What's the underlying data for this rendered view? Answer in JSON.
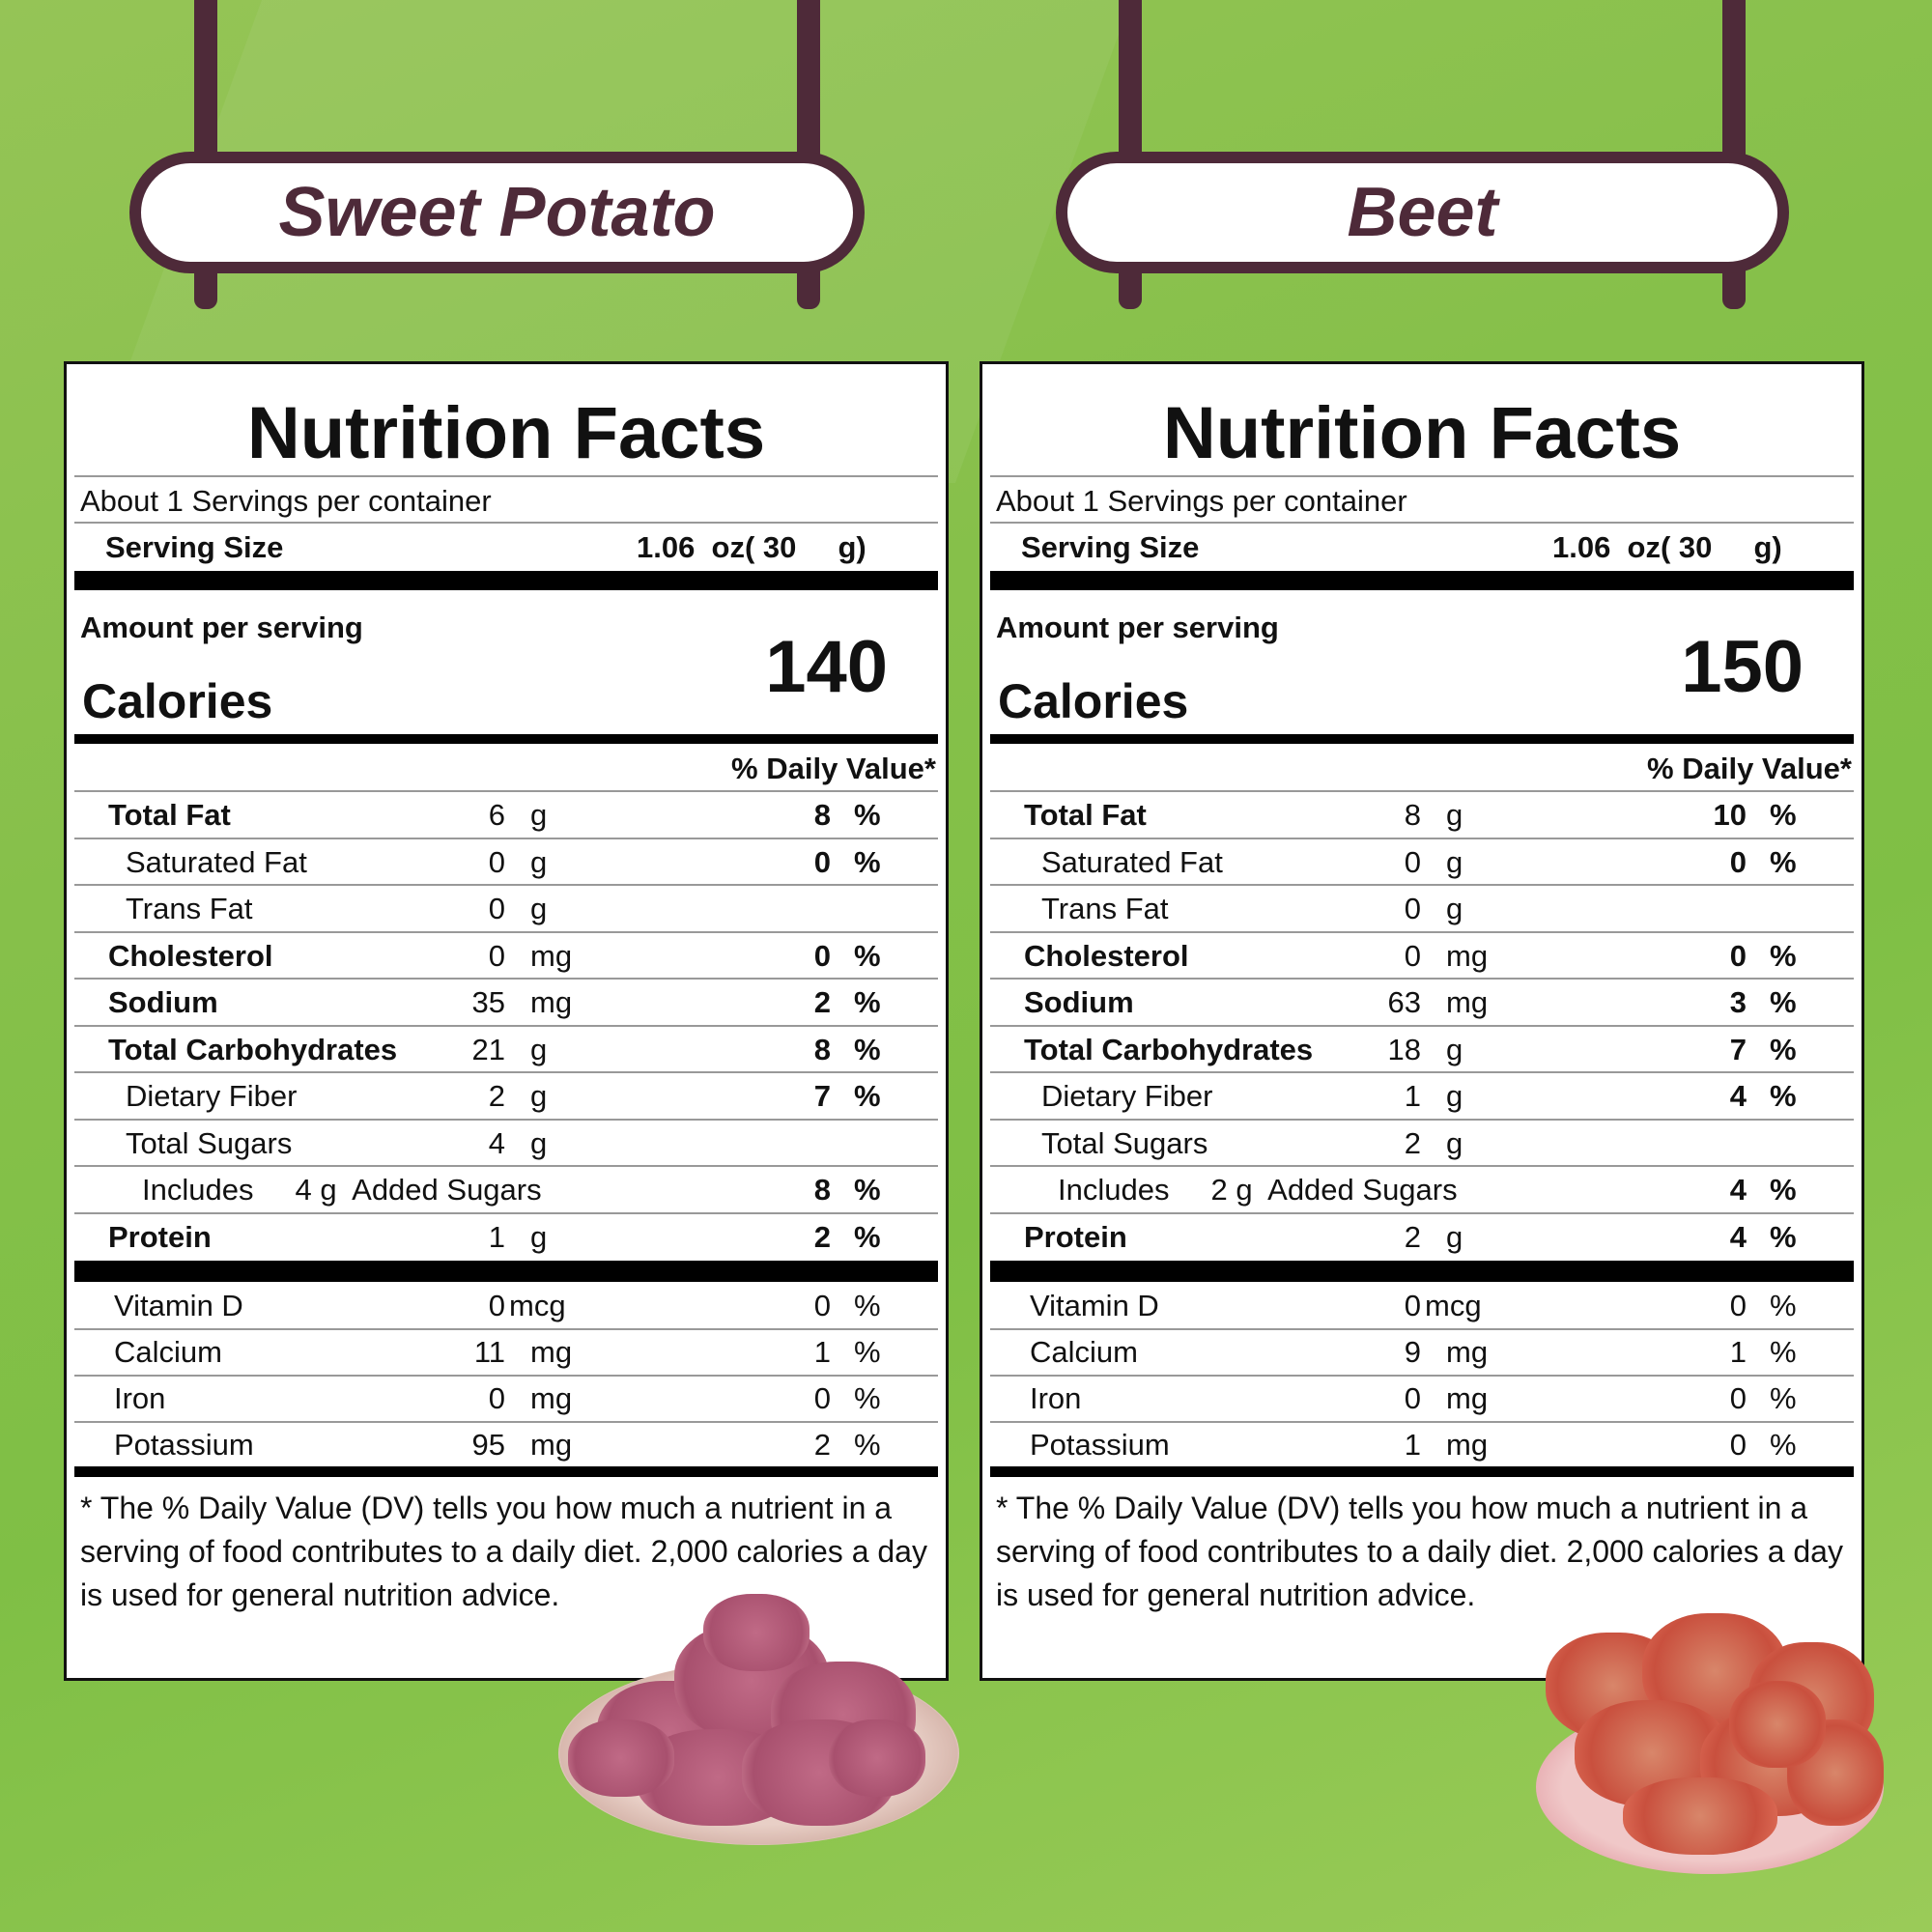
{
  "colors": {
    "sign": "#4e2a39",
    "background": "#86c04a"
  },
  "panels": [
    {
      "name": "Sweet Potato",
      "title": "Nutrition Facts",
      "servings": "About 1 Servings per container",
      "serving_size_label": "Serving Size",
      "serving_size_value": "1.06  oz( 30     g)",
      "amount_label": "Amount per serving",
      "calories_label": "Calories",
      "calories": "140",
      "dv_header": "% Daily Value*",
      "rows": [
        {
          "label": "Total Fat",
          "amount": "6",
          "unit": "g",
          "dv": "8",
          "pct": "%",
          "bold": true,
          "indent": 0
        },
        {
          "label": "Saturated Fat",
          "amount": "0",
          "unit": "g",
          "dv": "0",
          "pct": "%",
          "bold": false,
          "indent": 1
        },
        {
          "label": "Trans Fat",
          "amount": "0",
          "unit": "g",
          "dv": "",
          "pct": "",
          "bold": false,
          "indent": 1
        },
        {
          "label": "Cholesterol",
          "amount": "0",
          "unit": "mg",
          "dv": "0",
          "pct": "%",
          "bold": true,
          "indent": 0
        },
        {
          "label": "Sodium",
          "amount": "35",
          "unit": "mg",
          "dv": "2",
          "pct": "%",
          "bold": true,
          "indent": 0
        },
        {
          "label": "Total Carbohydrates",
          "amount": "21",
          "unit": "g",
          "dv": "8",
          "pct": "%",
          "bold": true,
          "indent": 0
        },
        {
          "label": "Dietary Fiber",
          "amount": "2",
          "unit": "g",
          "dv": "7",
          "pct": "%",
          "bold": false,
          "indent": 1
        },
        {
          "label": "Total Sugars",
          "amount": "4",
          "unit": "g",
          "dv": "",
          "pct": "",
          "bold": false,
          "indent": 1
        },
        {
          "label": "Includes     4 g  Added Sugars",
          "amount": "",
          "unit": "",
          "dv": "8",
          "pct": "%",
          "bold": false,
          "indent": 2
        },
        {
          "label": "Protein",
          "amount": "1",
          "unit": "g",
          "dv": "2",
          "pct": "%",
          "bold": true,
          "indent": 0
        }
      ],
      "vitamins": [
        {
          "label": "Vitamin D",
          "amount": "0",
          "unit": "mcg",
          "dv": "0",
          "pct": "%"
        },
        {
          "label": "Calcium",
          "amount": "11",
          "unit": "mg",
          "dv": "1",
          "pct": "%"
        },
        {
          "label": "Iron",
          "amount": "0",
          "unit": "mg",
          "dv": "0",
          "pct": "%"
        },
        {
          "label": "Potassium",
          "amount": "95",
          "unit": "mg",
          "dv": "2",
          "pct": "%"
        }
      ],
      "footnote": "* The % Daily Value (DV) tells you how much a nutrient in a serving of food contributes to a daily diet. 2,000 calories a day is used for general nutrition advice."
    },
    {
      "name": "Beet",
      "title": "Nutrition Facts",
      "servings": "About 1 Servings per container",
      "serving_size_label": "Serving Size",
      "serving_size_value": "1.06  oz( 30     g)",
      "amount_label": "Amount per serving",
      "calories_label": "Calories",
      "calories": "150",
      "dv_header": "% Daily Value*",
      "rows": [
        {
          "label": "Total Fat",
          "amount": "8",
          "unit": "g",
          "dv": "10",
          "pct": "%",
          "bold": true,
          "indent": 0
        },
        {
          "label": "Saturated Fat",
          "amount": "0",
          "unit": "g",
          "dv": "0",
          "pct": "%",
          "bold": false,
          "indent": 1
        },
        {
          "label": "Trans Fat",
          "amount": "0",
          "unit": "g",
          "dv": "",
          "pct": "",
          "bold": false,
          "indent": 1
        },
        {
          "label": "Cholesterol",
          "amount": "0",
          "unit": "mg",
          "dv": "0",
          "pct": "%",
          "bold": true,
          "indent": 0
        },
        {
          "label": "Sodium",
          "amount": "63",
          "unit": "mg",
          "dv": "3",
          "pct": "%",
          "bold": true,
          "indent": 0
        },
        {
          "label": "Total Carbohydrates",
          "amount": "18",
          "unit": "g",
          "dv": "7",
          "pct": "%",
          "bold": true,
          "indent": 0
        },
        {
          "label": "Dietary Fiber",
          "amount": "1",
          "unit": "g",
          "dv": "4",
          "pct": "%",
          "bold": false,
          "indent": 1
        },
        {
          "label": "Total Sugars",
          "amount": "2",
          "unit": "g",
          "dv": "",
          "pct": "",
          "bold": false,
          "indent": 1
        },
        {
          "label": "Includes     2 g  Added Sugars",
          "amount": "",
          "unit": "",
          "dv": "4",
          "pct": "%",
          "bold": false,
          "indent": 2
        },
        {
          "label": "Protein",
          "amount": "2",
          "unit": "g",
          "dv": "4",
          "pct": "%",
          "bold": true,
          "indent": 0
        }
      ],
      "vitamins": [
        {
          "label": "Vitamin D",
          "amount": "0",
          "unit": "mcg",
          "dv": "0",
          "pct": "%"
        },
        {
          "label": "Calcium",
          "amount": "9",
          "unit": "mg",
          "dv": "1",
          "pct": "%"
        },
        {
          "label": "Iron",
          "amount": "0",
          "unit": "mg",
          "dv": "0",
          "pct": "%"
        },
        {
          "label": "Potassium",
          "amount": "1",
          "unit": "mg",
          "dv": "0",
          "pct": "%"
        }
      ],
      "footnote": "* The % Daily Value (DV) tells you how much a nutrient in a serving of food contributes to a daily diet. 2,000 calories a day is used for general nutrition advice."
    }
  ]
}
